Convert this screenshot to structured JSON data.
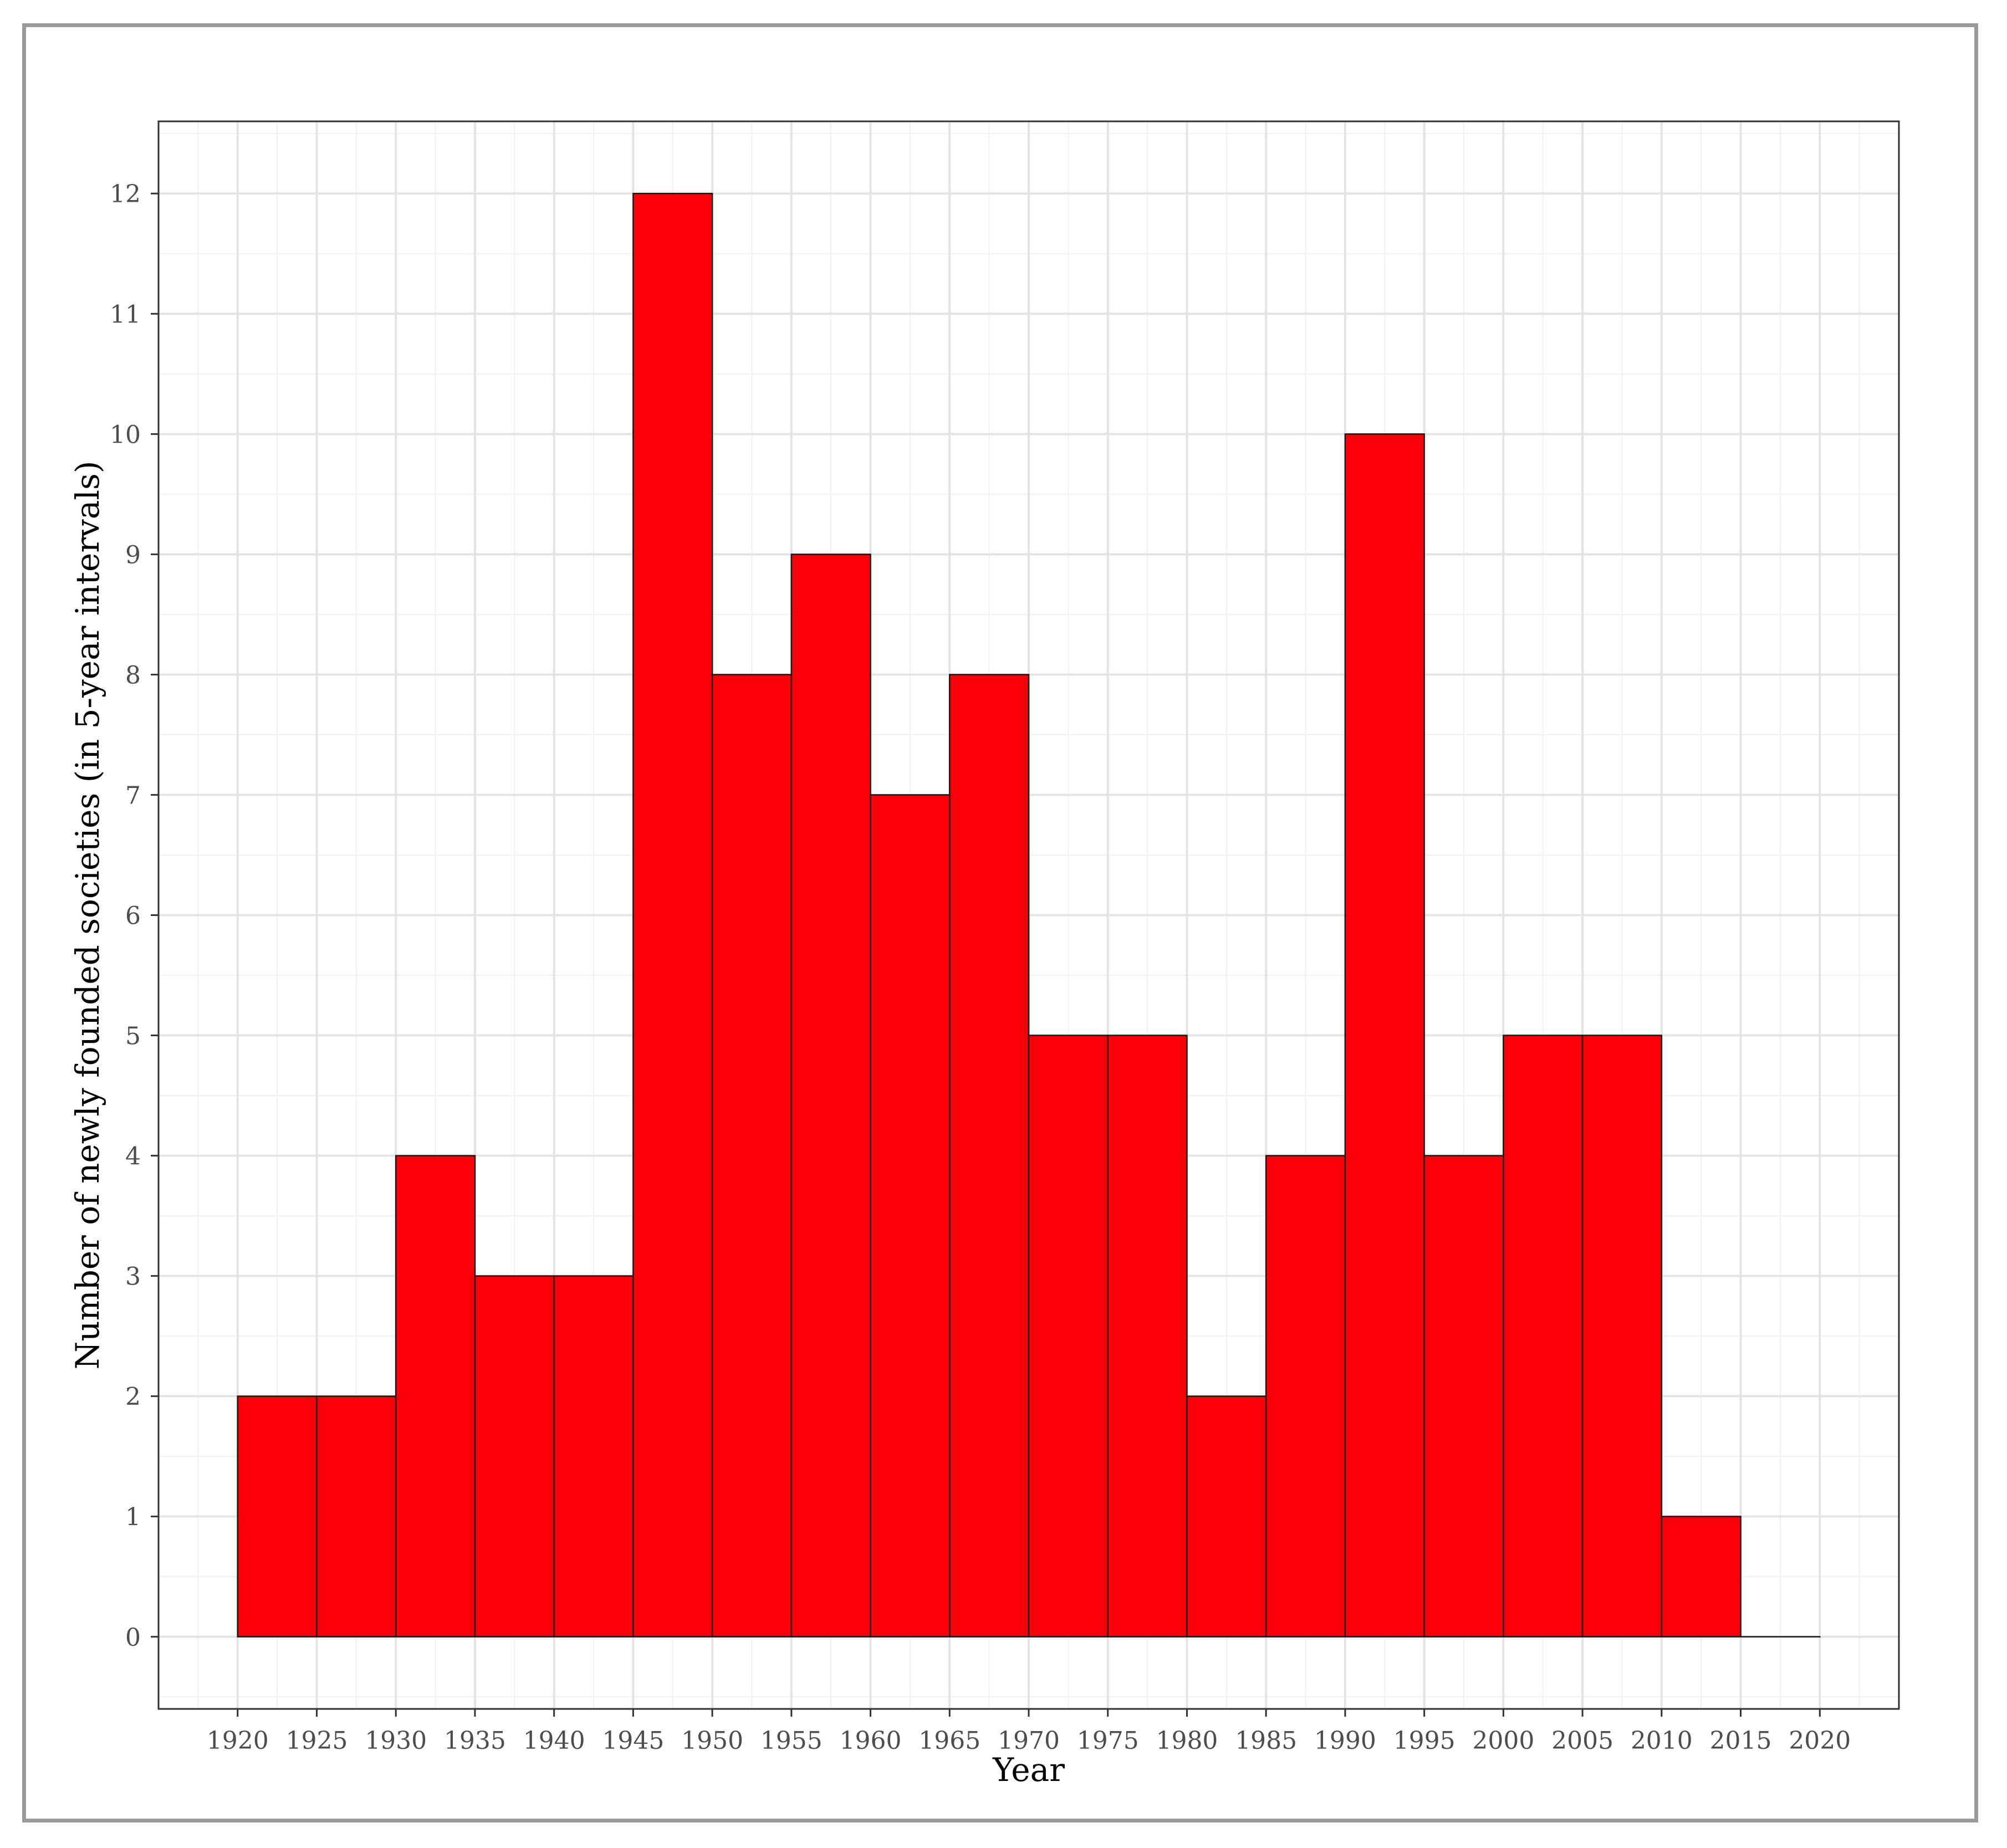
{
  "chart_data": {
    "type": "bar",
    "title": "",
    "xlabel": "Year",
    "ylabel": "Number of newly founded societies (in 5-year intervals)",
    "bin_width": 5,
    "bins": [
      {
        "start": 1920,
        "end": 1925,
        "value": 2
      },
      {
        "start": 1925,
        "end": 1930,
        "value": 2
      },
      {
        "start": 1930,
        "end": 1935,
        "value": 4
      },
      {
        "start": 1935,
        "end": 1940,
        "value": 3
      },
      {
        "start": 1940,
        "end": 1945,
        "value": 3
      },
      {
        "start": 1945,
        "end": 1950,
        "value": 12
      },
      {
        "start": 1950,
        "end": 1955,
        "value": 8
      },
      {
        "start": 1955,
        "end": 1960,
        "value": 9
      },
      {
        "start": 1960,
        "end": 1965,
        "value": 7
      },
      {
        "start": 1965,
        "end": 1970,
        "value": 8
      },
      {
        "start": 1970,
        "end": 1975,
        "value": 5
      },
      {
        "start": 1975,
        "end": 1980,
        "value": 5
      },
      {
        "start": 1980,
        "end": 1985,
        "value": 2
      },
      {
        "start": 1985,
        "end": 1990,
        "value": 4
      },
      {
        "start": 1990,
        "end": 1995,
        "value": 10
      },
      {
        "start": 1995,
        "end": 2000,
        "value": 4
      },
      {
        "start": 2000,
        "end": 2005,
        "value": 5
      },
      {
        "start": 2005,
        "end": 2010,
        "value": 5
      },
      {
        "start": 2010,
        "end": 2015,
        "value": 1
      },
      {
        "start": 2015,
        "end": 2020,
        "value": 0
      }
    ],
    "xticks": [
      "1920",
      "1925",
      "1930",
      "1935",
      "1940",
      "1945",
      "1950",
      "1955",
      "1960",
      "1965",
      "1970",
      "1975",
      "1980",
      "1985",
      "1990",
      "1995",
      "2000",
      "2005",
      "2010",
      "2015",
      "2020"
    ],
    "yticks": [
      "0",
      "1",
      "2",
      "3",
      "4",
      "5",
      "6",
      "7",
      "8",
      "9",
      "10",
      "11",
      "12"
    ],
    "xlim": [
      1915,
      2025
    ],
    "ylim": [
      -0.6,
      12.6
    ],
    "bar_color": "#f90008",
    "grid": true,
    "legend": "none"
  }
}
